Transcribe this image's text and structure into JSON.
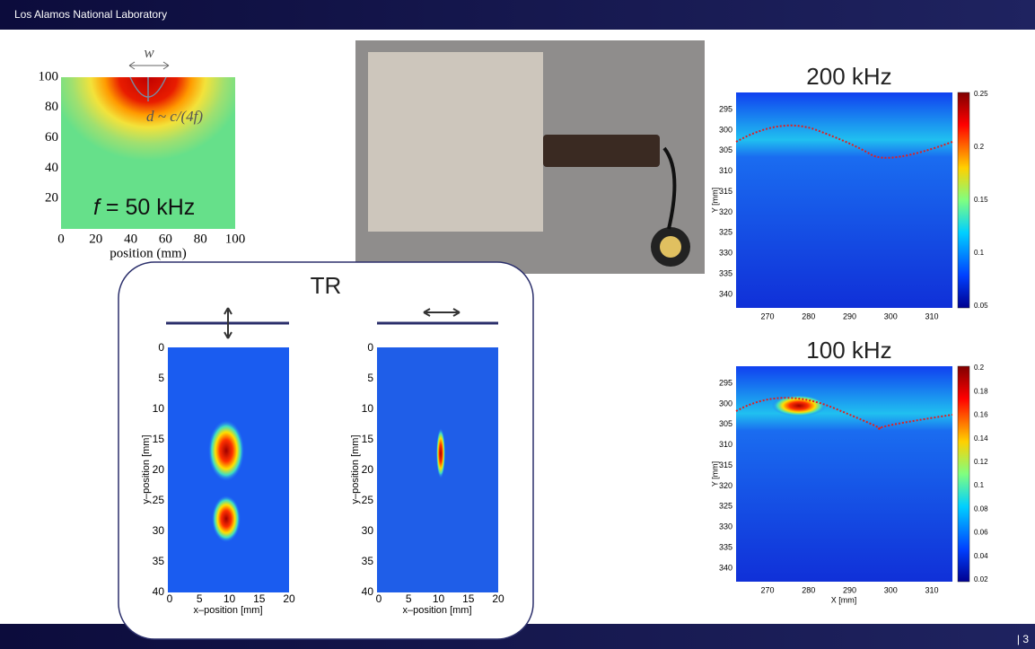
{
  "header": {
    "org": "Los Alamos National Laboratory"
  },
  "footer": {
    "page": "| 3"
  },
  "field_plot": {
    "width_symbol": "w",
    "depth_label": "d ~ c/(4f)",
    "freq_symbol": "f",
    "freq_text": " = 50 kHz",
    "xlabel": "position (mm)",
    "xticks": [
      "0",
      "20",
      "40",
      "60",
      "80",
      "100"
    ],
    "yticks": [
      "100",
      "80",
      "60",
      "40",
      "20"
    ]
  },
  "tr": {
    "title": "TR",
    "left": {
      "ylabel": "y–position [mm]",
      "xlabel": "x–position [mm]",
      "yticks": [
        "0",
        "5",
        "10",
        "15",
        "20",
        "25",
        "30",
        "35",
        "40"
      ],
      "xticks": [
        "0",
        "5",
        "10",
        "15",
        "20"
      ]
    },
    "right": {
      "ylabel": "y–position [mm]",
      "xlabel": "x–position [mm]",
      "yticks": [
        "0",
        "5",
        "10",
        "15",
        "20",
        "25",
        "30",
        "35",
        "40"
      ],
      "xticks": [
        "0",
        "5",
        "10",
        "15",
        "20"
      ]
    }
  },
  "scan_200": {
    "title": "200 kHz",
    "ylabel": "Y [mm]",
    "yticks": [
      "295",
      "300",
      "305",
      "310",
      "315",
      "320",
      "325",
      "330",
      "335",
      "340"
    ],
    "xticks": [
      "270",
      "280",
      "290",
      "300",
      "310"
    ],
    "colorbar": [
      "0.25",
      "0.2",
      "0.15",
      "0.1",
      "0.05"
    ]
  },
  "scan_100": {
    "title": "100 kHz",
    "ylabel": "Y [mm]",
    "xlabel": "X [mm]",
    "yticks": [
      "295",
      "300",
      "305",
      "310",
      "315",
      "320",
      "325",
      "330",
      "335",
      "340"
    ],
    "xticks": [
      "270",
      "280",
      "290",
      "300",
      "310"
    ],
    "colorbar": [
      "0.2",
      "0.18",
      "0.16",
      "0.14",
      "0.12",
      "0.1",
      "0.08",
      "0.06",
      "0.04",
      "0.02"
    ]
  }
}
